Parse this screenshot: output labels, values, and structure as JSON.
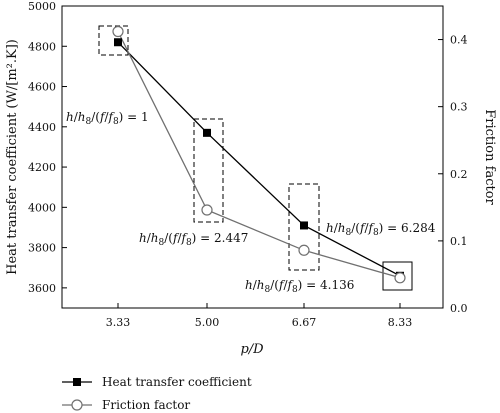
{
  "chart_data": {
    "type": "line",
    "categories": [
      "3.33",
      "5.00",
      "6.67",
      "8.33"
    ],
    "xlabel": "p/D",
    "ylabel_left": "Heat transfer coefficient (W/[m².K])",
    "ylabel_right": "Friction factor",
    "ylim_left": [
      3500,
      5000
    ],
    "yticks_left": [
      "3600",
      "3800",
      "4000",
      "4200",
      "4400",
      "4600",
      "4800",
      "5000"
    ],
    "ylim_right": [
      0,
      0.45
    ],
    "yticks_right": [
      "0.0",
      "0.1",
      "0.2",
      "0.3",
      "0.4"
    ],
    "series": [
      {
        "name": "Heat transfer coefficient",
        "axis": "left",
        "marker": "square-filled",
        "color": "#000000",
        "values": [
          4820,
          4370,
          3910,
          3660
        ]
      },
      {
        "name": "Friction factor",
        "axis": "right",
        "marker": "circle-open",
        "color": "#707070",
        "values": [
          0.412,
          0.146,
          0.086,
          0.045
        ]
      }
    ],
    "annotations": [
      {
        "text": "h/h8/(f/f8) = 1",
        "category": "3.33"
      },
      {
        "text": "h/h8/(f/f8) = 2.447",
        "category": "5.00"
      },
      {
        "text": "h/h8/(f/f8) = 4.136",
        "category": "6.67"
      },
      {
        "text": "h/h8/(f/f8) = 6.284",
        "category": "8.33"
      }
    ],
    "grid": false,
    "legend_position": "bottom"
  }
}
